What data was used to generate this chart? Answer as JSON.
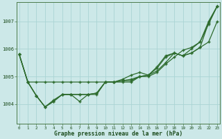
{
  "xlabel": "Graphe pression niveau de la mer (hPa)",
  "background_color": "#cce8e8",
  "grid_color": "#aad4d4",
  "line_color": "#2d6b2d",
  "x_ticks": [
    0,
    1,
    2,
    3,
    4,
    5,
    6,
    7,
    8,
    9,
    10,
    11,
    12,
    13,
    14,
    15,
    16,
    17,
    18,
    19,
    20,
    21,
    22,
    23
  ],
  "ylim": [
    1003.3,
    1007.7
  ],
  "yticks": [
    1004,
    1005,
    1006,
    1007
  ],
  "series": [
    [
      1005.8,
      1004.8,
      1004.8,
      1004.8,
      1004.8,
      1004.8,
      1004.8,
      1004.8,
      1004.8,
      1004.8,
      1004.8,
      1004.8,
      1004.8,
      1004.8,
      1005.0,
      1005.0,
      1005.15,
      1005.45,
      1005.7,
      1005.95,
      1006.05,
      1006.25,
      1007.0,
      1007.55
    ],
    [
      1005.8,
      1004.8,
      1004.3,
      1003.9,
      1004.1,
      1004.35,
      1004.35,
      1004.35,
      1004.35,
      1004.35,
      1004.8,
      1004.8,
      1004.85,
      1004.85,
      1005.0,
      1005.05,
      1005.35,
      1005.75,
      1005.85,
      1005.75,
      1005.85,
      1006.05,
      1006.95,
      1007.55
    ],
    [
      1005.8,
      1004.8,
      1004.3,
      1003.9,
      1004.1,
      1004.35,
      1004.35,
      1004.1,
      1004.35,
      1004.4,
      1004.8,
      1004.8,
      1004.85,
      1004.9,
      1005.0,
      1005.05,
      1005.2,
      1005.5,
      1005.85,
      1005.75,
      1005.85,
      1006.05,
      1006.25,
      1007.0
    ],
    [
      1005.8,
      1004.8,
      1004.3,
      1003.9,
      1004.15,
      1004.35,
      1004.35,
      1004.35,
      1004.35,
      1004.4,
      1004.8,
      1004.8,
      1004.9,
      1005.05,
      1005.15,
      1005.05,
      1005.3,
      1005.7,
      1005.85,
      1005.75,
      1006.0,
      1006.25,
      1006.9,
      1007.55
    ]
  ]
}
